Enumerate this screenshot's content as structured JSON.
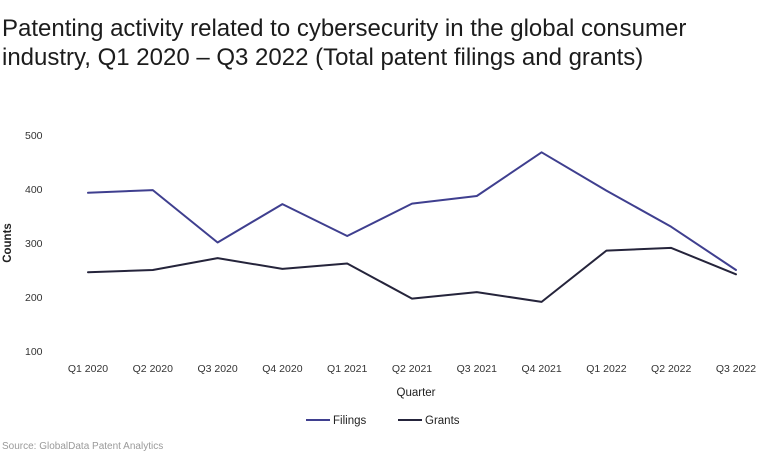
{
  "chart_data": {
    "type": "line",
    "title": "Patenting activity related to cybersecurity in the global consumer industry, Q1 2020 – Q3 2022 (Total patent filings and grants)",
    "xlabel": "Quarter",
    "ylabel": "Counts",
    "categories": [
      "Q1 2020",
      "Q2 2020",
      "Q3 2020",
      "Q4 2020",
      "Q1 2021",
      "Q2 2021",
      "Q3 2021",
      "Q4 2021",
      "Q1 2022",
      "Q2 2022",
      "Q3 2022"
    ],
    "ylim": [
      100,
      500
    ],
    "yticks": [
      100,
      200,
      300,
      400,
      500
    ],
    "grid": false,
    "legend_position": "bottom-center",
    "series": [
      {
        "name": "Filings",
        "color": "#3f3f8f",
        "values": [
          393,
          398,
          301,
          372,
          313,
          373,
          387,
          468,
          397,
          330,
          250
        ]
      },
      {
        "name": "Grants",
        "color": "#25243b",
        "values": [
          246,
          250,
          272,
          252,
          262,
          197,
          209,
          191,
          286,
          291,
          242
        ]
      }
    ],
    "source": "Source: GlobalData Patent Analytics"
  }
}
